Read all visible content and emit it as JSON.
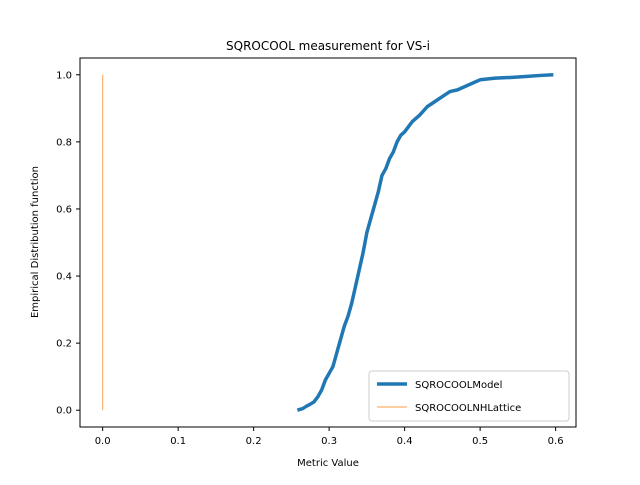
{
  "chart_data": {
    "type": "line",
    "title": "SQROCOOL measurement for VS-i",
    "xlabel": "Metric Value",
    "ylabel": "Empirical Distribution function",
    "xlim": [
      -0.03,
      0.627
    ],
    "ylim": [
      -0.05,
      1.05
    ],
    "x_ticks": [
      0.0,
      0.1,
      0.2,
      0.3,
      0.4,
      0.5,
      0.6
    ],
    "x_tick_labels": [
      "0.0",
      "0.1",
      "0.2",
      "0.3",
      "0.4",
      "0.5",
      "0.6"
    ],
    "y_ticks": [
      0.0,
      0.2,
      0.4,
      0.6,
      0.8,
      1.0
    ],
    "y_tick_labels": [
      "0.0",
      "0.2",
      "0.4",
      "0.6",
      "0.8",
      "1.0"
    ],
    "grid": false,
    "legend_position": "lower right",
    "series": [
      {
        "name": "SQROCOOLModel",
        "color": "#1f77b4",
        "linewidth": "thick",
        "x": [
          0.258,
          0.265,
          0.27,
          0.275,
          0.28,
          0.285,
          0.29,
          0.295,
          0.3,
          0.305,
          0.31,
          0.315,
          0.32,
          0.325,
          0.33,
          0.335,
          0.34,
          0.345,
          0.35,
          0.355,
          0.36,
          0.365,
          0.37,
          0.375,
          0.38,
          0.385,
          0.39,
          0.395,
          0.4,
          0.41,
          0.42,
          0.43,
          0.44,
          0.45,
          0.46,
          0.47,
          0.48,
          0.49,
          0.5,
          0.52,
          0.54,
          0.56,
          0.58,
          0.597
        ],
        "y": [
          0.0,
          0.005,
          0.012,
          0.018,
          0.025,
          0.04,
          0.06,
          0.09,
          0.11,
          0.13,
          0.17,
          0.21,
          0.25,
          0.28,
          0.32,
          0.37,
          0.42,
          0.47,
          0.53,
          0.57,
          0.61,
          0.65,
          0.7,
          0.72,
          0.75,
          0.77,
          0.8,
          0.82,
          0.83,
          0.86,
          0.88,
          0.905,
          0.92,
          0.935,
          0.95,
          0.955,
          0.965,
          0.975,
          0.985,
          0.99,
          0.992,
          0.995,
          0.998,
          1.0
        ]
      },
      {
        "name": "SQROCOOLNHLattice",
        "color": "#ff7f0e",
        "linewidth": "thin",
        "x": [
          0.0,
          0.0
        ],
        "y": [
          0.0,
          1.0
        ]
      }
    ]
  }
}
